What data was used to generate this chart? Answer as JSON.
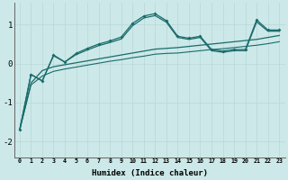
{
  "xlabel": "Humidex (Indice chaleur)",
  "background_color": "#cce8e8",
  "line_color": "#1a6b6b",
  "x_values": [
    0,
    1,
    2,
    3,
    4,
    5,
    6,
    7,
    8,
    9,
    10,
    11,
    12,
    13,
    14,
    15,
    16,
    17,
    18,
    19,
    20,
    21,
    22,
    23
  ],
  "y_wavy": [
    -1.7,
    -0.28,
    -0.45,
    0.22,
    0.04,
    0.26,
    0.39,
    0.5,
    0.58,
    0.68,
    1.03,
    1.22,
    1.28,
    1.1,
    0.7,
    0.65,
    0.7,
    0.36,
    0.32,
    0.36,
    0.36,
    1.12,
    0.86,
    0.86
  ],
  "y_smooth": [
    -1.7,
    -0.28,
    -0.44,
    0.2,
    0.04,
    0.23,
    0.35,
    0.46,
    0.54,
    0.63,
    0.97,
    1.17,
    1.23,
    1.06,
    0.67,
    0.62,
    0.67,
    0.33,
    0.29,
    0.33,
    0.33,
    1.07,
    0.83,
    0.83
  ],
  "y_lin1": [
    -1.7,
    -0.5,
    -0.18,
    -0.08,
    -0.03,
    0.02,
    0.07,
    0.12,
    0.17,
    0.22,
    0.27,
    0.32,
    0.37,
    0.39,
    0.41,
    0.44,
    0.47,
    0.5,
    0.53,
    0.56,
    0.59,
    0.62,
    0.67,
    0.72
  ],
  "y_lin2": [
    -1.7,
    -0.55,
    -0.32,
    -0.2,
    -0.14,
    -0.09,
    -0.04,
    0.01,
    0.06,
    0.1,
    0.15,
    0.19,
    0.24,
    0.26,
    0.27,
    0.3,
    0.33,
    0.36,
    0.38,
    0.41,
    0.44,
    0.47,
    0.51,
    0.56
  ],
  "ylim": [
    -2.4,
    1.55
  ],
  "xlim": [
    -0.5,
    23.5
  ],
  "yticks": [
    -2,
    -1,
    0,
    1
  ],
  "xticks": [
    0,
    1,
    2,
    3,
    4,
    5,
    6,
    7,
    8,
    9,
    10,
    11,
    12,
    13,
    14,
    15,
    16,
    17,
    18,
    19,
    20,
    21,
    22,
    23
  ]
}
